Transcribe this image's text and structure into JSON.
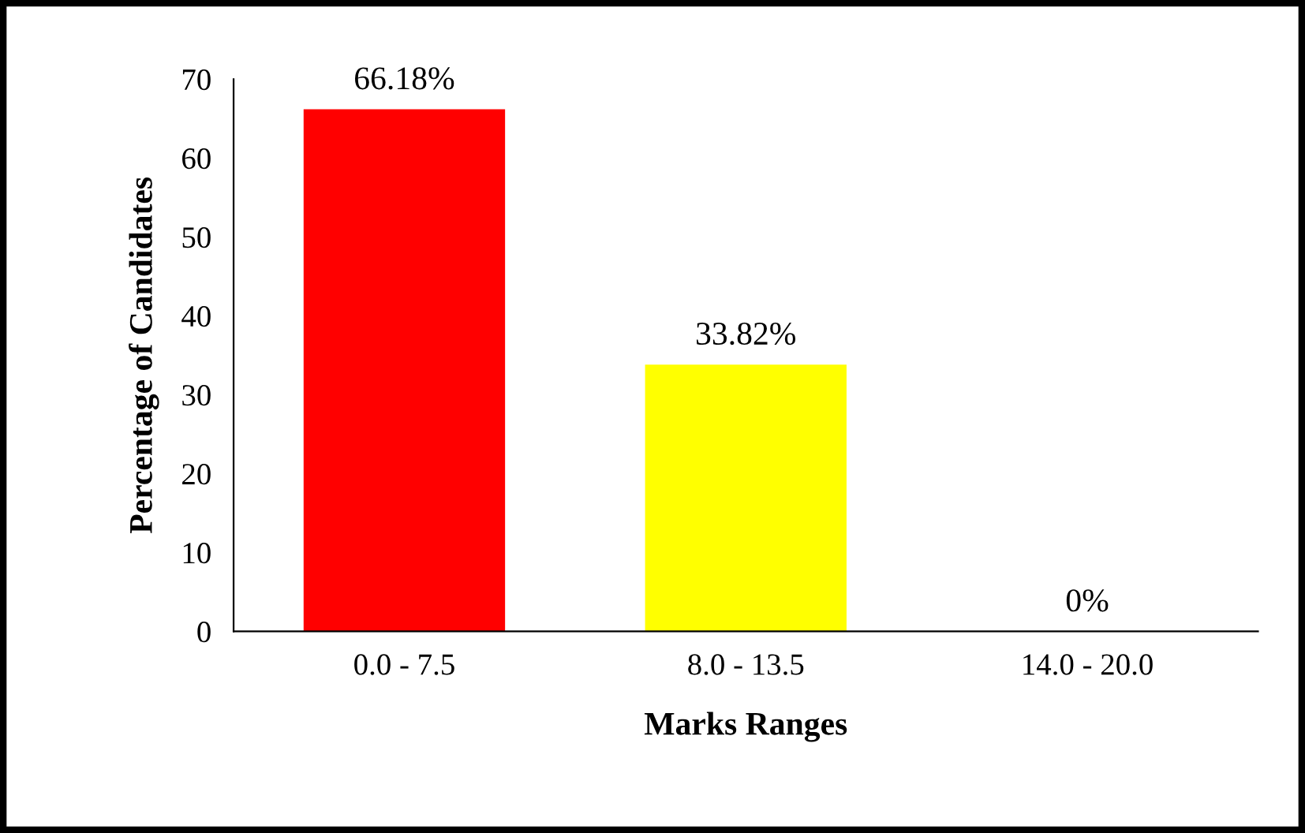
{
  "chart_data": {
    "type": "bar",
    "categories": [
      "0.0 - 7.5",
      "8.0 - 13.5",
      "14.0 - 20.0"
    ],
    "values": [
      66.18,
      33.82,
      0
    ],
    "value_labels": [
      "66.18%",
      "33.82%",
      "0%"
    ],
    "colors": [
      "#ff0000",
      "#ffff00",
      null
    ],
    "xlabel": "Marks Ranges",
    "ylabel": "Percentage of Candidates",
    "ylim": [
      0,
      70
    ],
    "yticks": [
      0,
      10,
      20,
      30,
      40,
      50,
      60,
      70
    ],
    "grid": false,
    "legend": false
  }
}
